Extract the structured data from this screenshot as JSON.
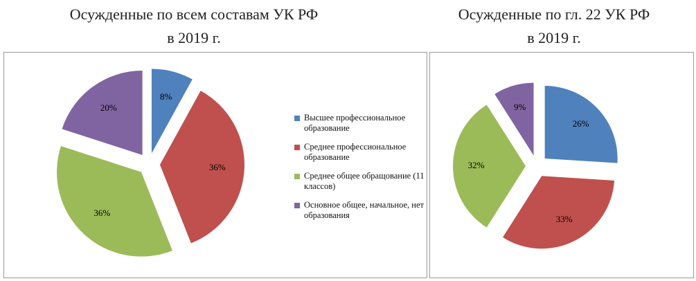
{
  "chart_data": [
    {
      "type": "pie",
      "title": "Осужденные по всем составам УК РФ\nв 2019 г.",
      "categories": [
        "Высшее профессиональное образование",
        "Среднее профессиональное образование",
        "Среднее общее обращование (11 классов)",
        "Основное общее, начальное, нет образования"
      ],
      "values": [
        8,
        36,
        36,
        20
      ],
      "value_labels": [
        "8%",
        "36%",
        "36%",
        "20%"
      ],
      "colors": [
        "#4f81bd",
        "#c0504d",
        "#9bbb59",
        "#8064a2"
      ],
      "legend": "right"
    },
    {
      "type": "pie",
      "title": "Осужденные по гл. 22 УК РФ\nв 2019 г.",
      "values": [
        26,
        33,
        32,
        9
      ],
      "value_labels": [
        "26%",
        "33%",
        "32%",
        "9%"
      ],
      "colors": [
        "#4f81bd",
        "#c0504d",
        "#9bbb59",
        "#8064a2"
      ]
    }
  ]
}
